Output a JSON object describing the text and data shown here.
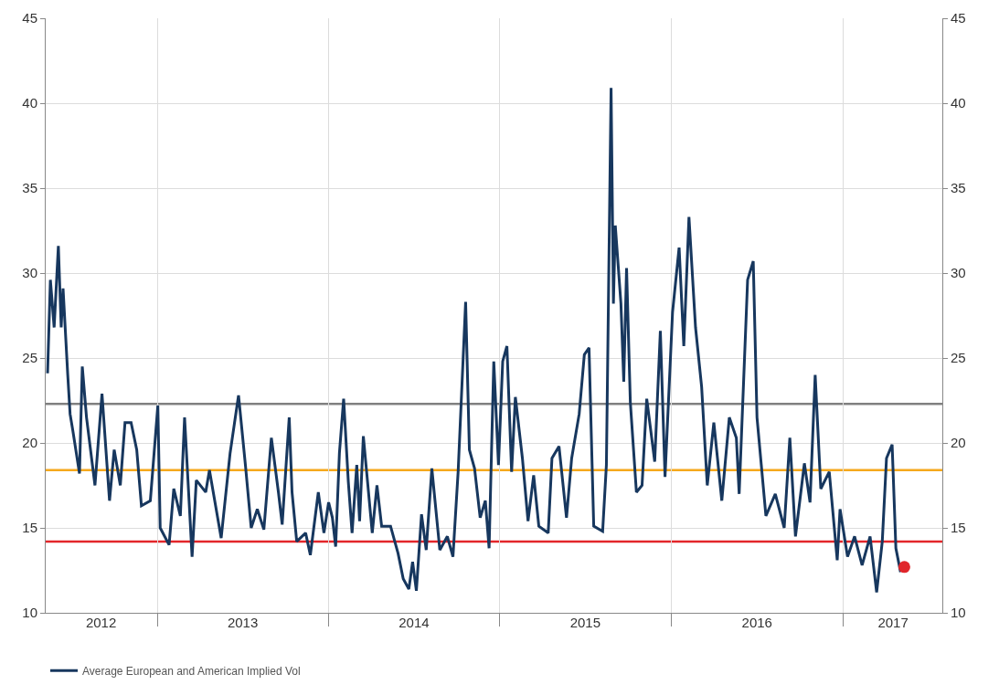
{
  "chart_data": {
    "type": "line",
    "xlim": [
      "2012-05-08",
      "2017-08-01"
    ],
    "xticks": [
      {
        "value": "2013-01-01",
        "label": null
      },
      {
        "value": "2014-01-01",
        "label": null
      },
      {
        "value": "2015-01-01",
        "label": null
      },
      {
        "value": "2016-01-01",
        "label": null
      },
      {
        "value": "2017-01-01",
        "label": null
      },
      {
        "value": "2012-09-03",
        "label": "2012"
      },
      {
        "value": "2013-07-02",
        "label": "2013"
      },
      {
        "value": "2014-07-02",
        "label": "2014"
      },
      {
        "value": "2015-07-02",
        "label": "2015"
      },
      {
        "value": "2016-07-02",
        "label": "2016"
      },
      {
        "value": "2017-04-18",
        "label": "2017"
      }
    ],
    "ylim": [
      10,
      45
    ],
    "yticks": [
      10,
      15,
      20,
      25,
      30,
      35,
      40,
      45
    ],
    "y2lim": [
      10,
      45
    ],
    "y2ticks": [
      10,
      15,
      20,
      25,
      30,
      35,
      40,
      45
    ],
    "grid": true,
    "legend": "bottom left",
    "series": [
      {
        "name": "Average European and American Implied Vol",
        "color": "#17375e",
        "x": [
          "2012-05-12",
          "2012-05-18",
          "2012-05-26",
          "2012-06-04",
          "2012-06-10",
          "2012-06-14",
          "2012-06-24",
          "2012-06-29",
          "2012-07-05",
          "2012-07-19",
          "2012-07-25",
          "2012-08-03",
          "2012-08-21",
          "2012-09-05",
          "2012-09-21",
          "2012-10-01",
          "2012-10-14",
          "2012-10-24",
          "2012-11-06",
          "2012-11-18",
          "2012-11-28",
          "2012-12-17",
          "2013-01-02",
          "2013-01-07",
          "2013-01-26",
          "2013-02-05",
          "2013-02-19",
          "2013-02-28",
          "2013-03-16",
          "2013-03-25",
          "2013-04-14",
          "2013-04-22",
          "2013-05-17",
          "2013-06-05",
          "2013-06-23",
          "2013-07-08",
          "2013-07-20",
          "2013-08-02",
          "2013-08-16",
          "2013-09-01",
          "2013-09-16",
          "2013-09-24",
          "2013-10-09",
          "2013-10-15",
          "2013-10-25",
          "2013-11-13",
          "2013-11-23",
          "2013-12-10",
          "2013-12-22",
          "2014-01-01",
          "2014-01-09",
          "2014-01-16",
          "2014-01-24",
          "2014-02-02",
          "2014-02-12",
          "2014-02-20",
          "2014-03-02",
          "2014-03-08",
          "2014-03-16",
          "2014-04-04",
          "2014-04-14",
          "2014-04-24",
          "2014-05-13",
          "2014-05-29",
          "2014-06-09",
          "2014-06-21",
          "2014-06-29",
          "2014-07-07",
          "2014-07-18",
          "2014-07-28",
          "2014-08-09",
          "2014-08-26",
          "2014-09-11",
          "2014-09-23",
          "2014-10-04",
          "2014-10-20",
          "2014-10-28",
          "2014-11-08",
          "2014-11-20",
          "2014-12-01",
          "2014-12-09",
          "2014-12-19",
          "2014-12-29",
          "2015-01-07",
          "2015-01-16",
          "2015-01-26",
          "2015-02-03",
          "2015-02-18",
          "2015-03-02",
          "2015-03-14",
          "2015-03-25",
          "2015-04-14",
          "2015-04-22",
          "2015-05-07",
          "2015-05-23",
          "2015-06-03",
          "2015-06-19",
          "2015-06-30",
          "2015-07-10",
          "2015-07-20",
          "2015-08-08",
          "2015-08-16",
          "2015-08-26",
          "2015-08-31",
          "2015-09-04",
          "2015-09-16",
          "2015-09-22",
          "2015-09-28",
          "2015-10-06",
          "2015-10-19",
          "2015-10-31",
          "2015-11-10",
          "2015-11-27",
          "2015-12-09",
          "2015-12-19",
          "2016-01-04",
          "2016-01-18",
          "2016-01-28",
          "2016-02-08",
          "2016-02-22",
          "2016-03-06",
          "2016-03-18",
          "2016-04-01",
          "2016-04-18",
          "2016-05-04",
          "2016-05-19",
          "2016-05-25",
          "2016-06-12",
          "2016-06-24",
          "2016-07-02",
          "2016-07-21",
          "2016-08-10",
          "2016-08-29",
          "2016-09-10",
          "2016-09-22",
          "2016-10-11",
          "2016-10-23",
          "2016-11-03",
          "2016-11-15",
          "2016-12-03",
          "2016-12-20",
          "2016-12-26",
          "2017-01-11",
          "2017-01-26",
          "2017-02-11",
          "2017-02-28",
          "2017-03-14",
          "2017-03-26",
          "2017-04-04",
          "2017-04-16",
          "2017-04-24",
          "2017-05-04"
        ],
        "values": [
          24.1,
          29.6,
          26.8,
          31.6,
          26.8,
          29.1,
          24.0,
          21.7,
          20.7,
          18.2,
          24.5,
          21.5,
          17.5,
          22.9,
          16.6,
          19.6,
          17.5,
          21.2,
          21.2,
          19.6,
          16.3,
          16.6,
          22.2,
          15.0,
          14.0,
          17.3,
          15.7,
          21.5,
          13.3,
          17.8,
          17.1,
          18.4,
          14.4,
          19.4,
          22.8,
          18.6,
          15.0,
          16.1,
          14.9,
          20.3,
          17.1,
          15.2,
          21.5,
          17.1,
          14.2,
          14.7,
          13.4,
          17.1,
          14.7,
          16.5,
          15.6,
          13.9,
          19.4,
          22.6,
          17.7,
          14.7,
          18.7,
          15.4,
          20.4,
          14.7,
          17.5,
          15.1,
          15.1,
          13.5,
          12.0,
          11.4,
          13.0,
          11.3,
          15.8,
          13.7,
          18.5,
          13.7,
          14.5,
          13.3,
          18.3,
          28.3,
          19.6,
          18.5,
          15.6,
          16.6,
          13.8,
          24.8,
          18.7,
          24.8,
          25.7,
          18.3,
          22.7,
          19.1,
          15.4,
          18.1,
          15.1,
          14.7,
          19.1,
          19.8,
          15.6,
          19.1,
          21.7,
          25.2,
          25.6,
          15.1,
          14.8,
          18.7,
          40.9,
          28.2,
          32.8,
          28.2,
          23.6,
          30.3,
          22.4,
          17.1,
          17.5,
          22.6,
          18.9,
          26.6,
          18.0,
          27.7,
          31.5,
          25.7,
          33.3,
          26.8,
          23.3,
          17.5,
          21.2,
          16.6,
          21.5,
          20.3,
          17.0,
          29.6,
          30.7,
          21.5,
          15.7,
          17.0,
          15.0,
          20.3,
          14.5,
          18.8,
          16.5,
          24.0,
          17.3,
          18.3,
          13.1,
          16.1,
          13.3,
          14.5,
          12.8,
          14.5,
          11.2,
          14.2,
          19.1,
          19.9,
          13.8,
          12.4
        ]
      },
      {
        "type": "scatter",
        "marker": "circle",
        "color": "#e0262b",
        "x": [
          "2017-05-12"
        ],
        "values": [
          12.7
        ]
      }
    ],
    "ref_lines": [
      {
        "axis": "y",
        "value": 22.3,
        "color": "#808080"
      },
      {
        "axis": "y",
        "value": 18.4,
        "color": "#f5a81c"
      },
      {
        "axis": "y",
        "value": 14.2,
        "color": "#e3262a"
      }
    ]
  }
}
